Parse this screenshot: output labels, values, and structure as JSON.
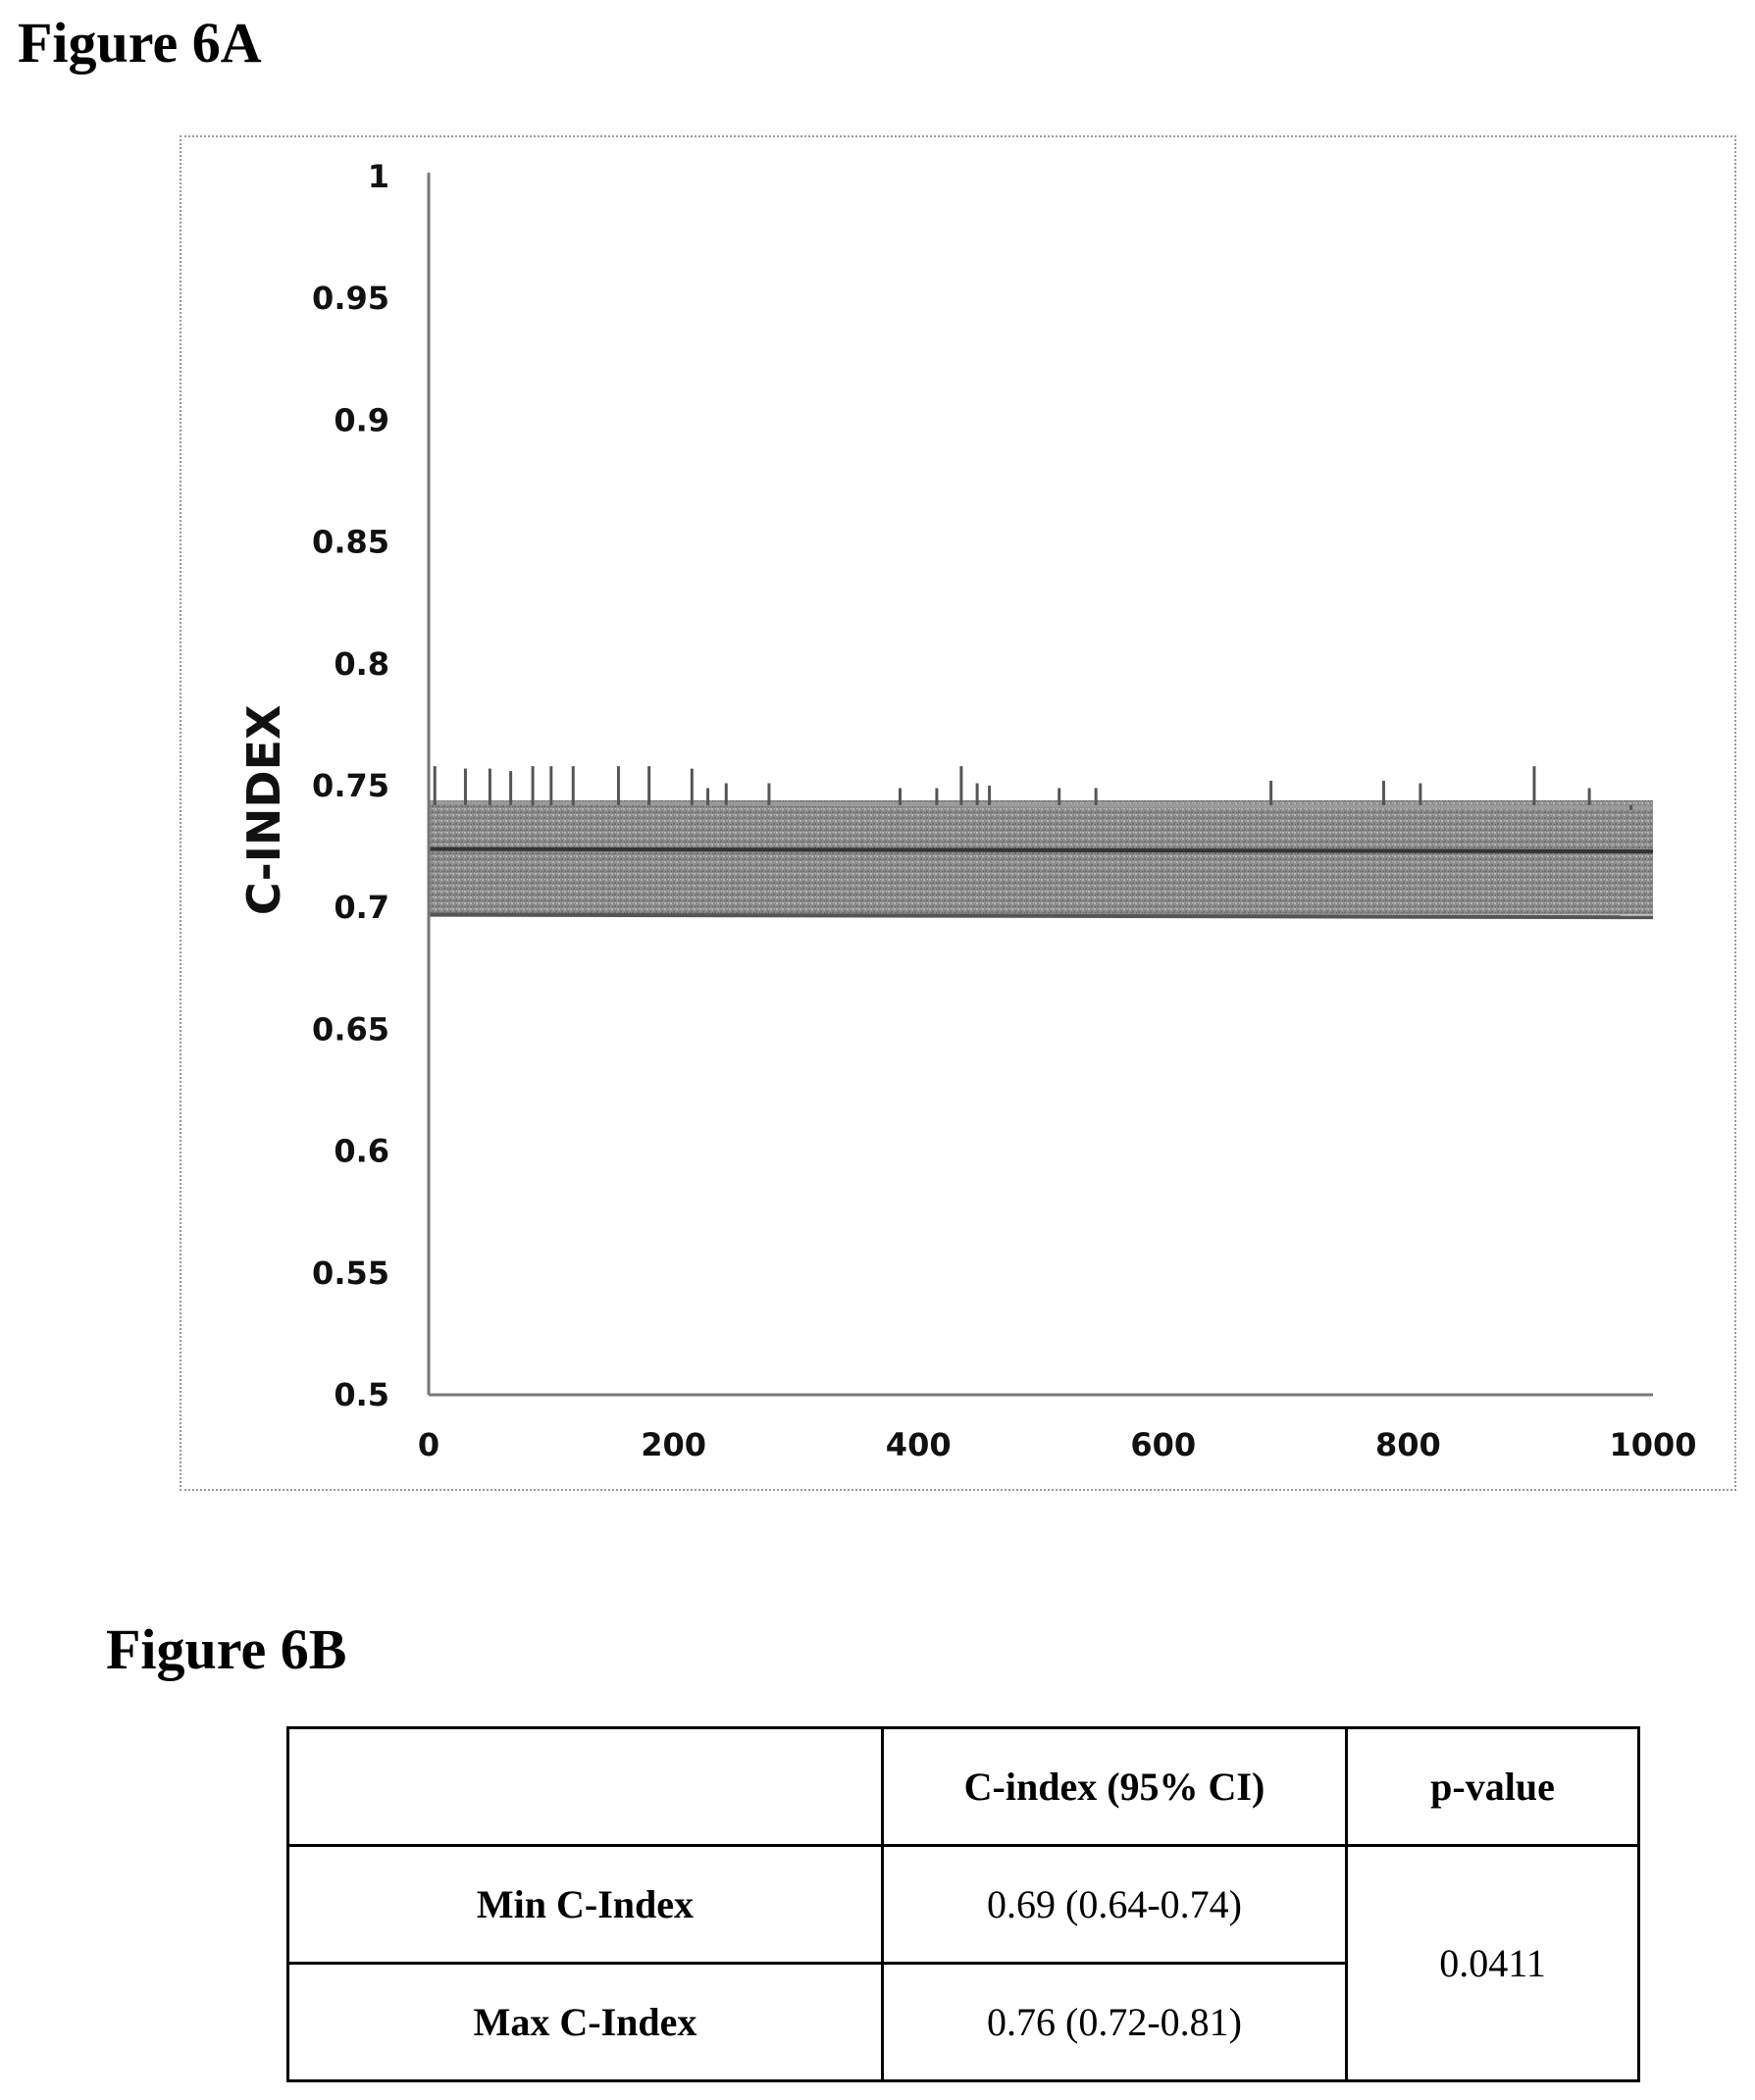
{
  "figure_a_label": "Figure 6A",
  "figure_b_label": "Figure 6B",
  "chart_data": {
    "type": "line",
    "title": "",
    "ylabel": "C-INDEX",
    "xlabel": "",
    "xlim": [
      0,
      1000
    ],
    "ylim": [
      0.5,
      1
    ],
    "x_ticks": [
      "0",
      "200",
      "400",
      "600",
      "800",
      "1000"
    ],
    "y_ticks": [
      "0.5",
      "0.55",
      "0.6",
      "0.65",
      "0.7",
      "0.75",
      "0.8",
      "0.85",
      "0.9",
      "0.95",
      "1"
    ],
    "grid": false,
    "band": {
      "x": [
        0,
        1000
      ],
      "lower": 0.697,
      "upper": 0.744
    },
    "series": [
      {
        "x": [
          0,
          1000
        ],
        "values": [
          0.743,
          0.741
        ]
      },
      {
        "x": [
          0,
          1000
        ],
        "values": [
          0.724,
          0.723
        ]
      },
      {
        "x": [
          0,
          1000
        ],
        "values": [
          0.697,
          0.696
        ]
      }
    ],
    "spikes": [
      {
        "x": 5,
        "y": 0.758
      },
      {
        "x": 30,
        "y": 0.757
      },
      {
        "x": 50,
        "y": 0.757
      },
      {
        "x": 67,
        "y": 0.756
      },
      {
        "x": 85,
        "y": 0.758
      },
      {
        "x": 100,
        "y": 0.758
      },
      {
        "x": 118,
        "y": 0.758
      },
      {
        "x": 155,
        "y": 0.758
      },
      {
        "x": 180,
        "y": 0.758
      },
      {
        "x": 215,
        "y": 0.757
      },
      {
        "x": 228,
        "y": 0.749
      },
      {
        "x": 243,
        "y": 0.751
      },
      {
        "x": 278,
        "y": 0.751
      },
      {
        "x": 385,
        "y": 0.749
      },
      {
        "x": 415,
        "y": 0.749
      },
      {
        "x": 435,
        "y": 0.758
      },
      {
        "x": 448,
        "y": 0.751
      },
      {
        "x": 458,
        "y": 0.75
      },
      {
        "x": 515,
        "y": 0.749
      },
      {
        "x": 545,
        "y": 0.749
      },
      {
        "x": 688,
        "y": 0.752
      },
      {
        "x": 780,
        "y": 0.752
      },
      {
        "x": 810,
        "y": 0.751
      },
      {
        "x": 903,
        "y": 0.758
      },
      {
        "x": 948,
        "y": 0.749
      },
      {
        "x": 982,
        "y": 0.74
      }
    ]
  },
  "table": {
    "headers": [
      "",
      "C-index (95% CI)",
      "p-value"
    ],
    "rows": [
      {
        "label": "Min C-Index",
        "ci": "0.69 (0.64-0.74)"
      },
      {
        "label": "Max C-Index",
        "ci": "0.76 (0.72-0.81)"
      }
    ],
    "p_value": "0.0411"
  }
}
